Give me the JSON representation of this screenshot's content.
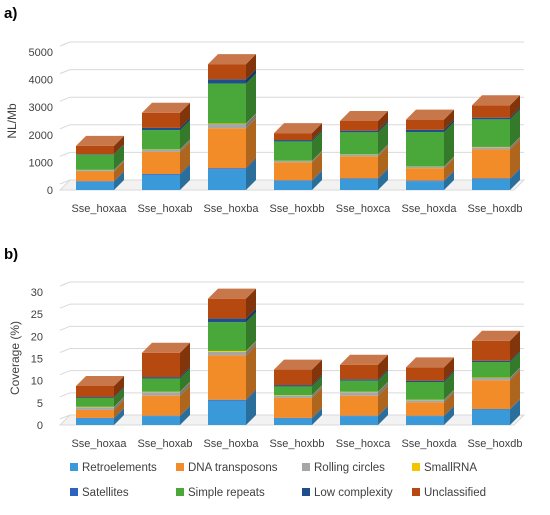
{
  "colors": {
    "Retroelements": "#3a9ad9",
    "DNA transposons": "#f28c28",
    "Rolling circles": "#a6a6a6",
    "SmallRNA": "#f4c400",
    "Satellites": "#2e62c0",
    "Simple repeats": "#4aa83a",
    "Low complexity": "#1f4e8c",
    "Unclassified": "#b5490f"
  },
  "chart_data": [
    {
      "panel_label": "a)",
      "type": "bar",
      "stacked": true,
      "three_d": true,
      "ylabel": "NL/Mb",
      "xlabel": "",
      "ylim": [
        0,
        5000
      ],
      "yticks": [
        0,
        1000,
        2000,
        3000,
        4000,
        5000
      ],
      "grid": true,
      "categories": [
        "Sse_hoxaa",
        "Sse_hoxab",
        "Sse_hoxba",
        "Sse_hoxbb",
        "Sse_hoxca",
        "Sse_hoxda",
        "Sse_hoxdb"
      ],
      "series": [
        {
          "name": "Retroelements",
          "values": [
            300,
            550,
            750,
            330,
            400,
            320,
            400
          ]
        },
        {
          "name": "Satellites",
          "values": [
            20,
            30,
            40,
            20,
            20,
            20,
            20
          ]
        },
        {
          "name": "DNA transposons",
          "values": [
            350,
            800,
            1450,
            650,
            800,
            450,
            1050
          ]
        },
        {
          "name": "Rolling circles",
          "values": [
            50,
            80,
            150,
            50,
            60,
            50,
            80
          ]
        },
        {
          "name": "SmallRNA",
          "values": [
            10,
            10,
            20,
            10,
            10,
            10,
            10
          ]
        },
        {
          "name": "Simple repeats",
          "values": [
            550,
            700,
            1450,
            700,
            800,
            1250,
            1000
          ]
        },
        {
          "name": "Low complexity",
          "values": [
            20,
            80,
            150,
            50,
            60,
            80,
            60
          ]
        },
        {
          "name": "Unclassified",
          "values": [
            300,
            550,
            550,
            250,
            350,
            370,
            450
          ]
        }
      ]
    },
    {
      "panel_label": "b)",
      "type": "bar",
      "stacked": true,
      "three_d": true,
      "ylabel": "Coverage (%)",
      "xlabel": "",
      "ylim": [
        0,
        30
      ],
      "yticks": [
        0,
        5,
        10,
        15,
        20,
        25,
        30
      ],
      "grid": true,
      "categories": [
        "Sse_hoxaa",
        "Sse_hoxab",
        "Sse_hoxba",
        "Sse_hoxbb",
        "Sse_hoxca",
        "Sse_hoxda",
        "Sse_hoxdb"
      ],
      "series": [
        {
          "name": "Retroelements",
          "values": [
            1.5,
            2,
            5.5,
            1.5,
            2,
            2,
            3.5
          ]
        },
        {
          "name": "Satellites",
          "values": [
            0.1,
            0.1,
            0.2,
            0.1,
            0.1,
            0.1,
            0.1
          ]
        },
        {
          "name": "DNA transposons",
          "values": [
            1.8,
            4.5,
            10,
            4.5,
            4.5,
            3,
            6.5
          ]
        },
        {
          "name": "Rolling circles",
          "values": [
            0.6,
            0.8,
            0.8,
            0.5,
            0.8,
            0.5,
            0.5
          ]
        },
        {
          "name": "SmallRNA",
          "values": [
            0.1,
            0.1,
            0.2,
            0.1,
            0.1,
            0.1,
            0.1
          ]
        },
        {
          "name": "Simple repeats",
          "values": [
            2,
            3,
            6.5,
            2,
            2.5,
            4,
            3.5
          ]
        },
        {
          "name": "Low complexity",
          "values": [
            0.2,
            0.3,
            0.8,
            0.3,
            0.3,
            0.3,
            0.3
          ]
        },
        {
          "name": "Unclassified",
          "values": [
            2.5,
            5.5,
            4.5,
            3.5,
            3.3,
            3,
            4.5
          ]
        }
      ]
    }
  ],
  "legend": {
    "placement": "bottom",
    "items": [
      "Retroelements",
      "DNA transposons",
      "Rolling circles",
      "SmallRNA",
      "Satellites",
      "Simple repeats",
      "Low complexity",
      "Unclassified"
    ]
  }
}
